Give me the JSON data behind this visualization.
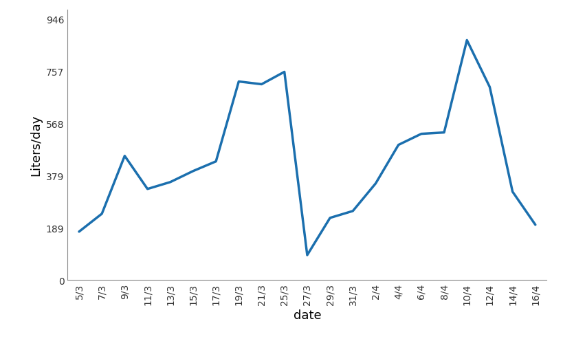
{
  "dates": [
    "5/3",
    "7/3",
    "9/3",
    "11/3",
    "13/3",
    "15/3",
    "17/3",
    "19/3",
    "21/3",
    "25/3",
    "27/3",
    "29/3",
    "31/3",
    "2/4",
    "4/4",
    "6/4",
    "8/4",
    "10/4",
    "12/4",
    "14/4",
    "16/4"
  ],
  "values": [
    175,
    240,
    450,
    330,
    355,
    395,
    430,
    720,
    710,
    755,
    90,
    225,
    250,
    350,
    490,
    530,
    535,
    870,
    700,
    320,
    200
  ],
  "y_ticks": [
    0,
    189,
    379,
    568,
    757,
    946
  ],
  "ylabel": "Liters/day",
  "xlabel": "date",
  "line_color": "#1b6fae",
  "line_width": 2.5,
  "ylim": [
    0,
    980
  ],
  "spine_color": "#888888",
  "tick_fontsize": 10,
  "label_fontsize": 13
}
